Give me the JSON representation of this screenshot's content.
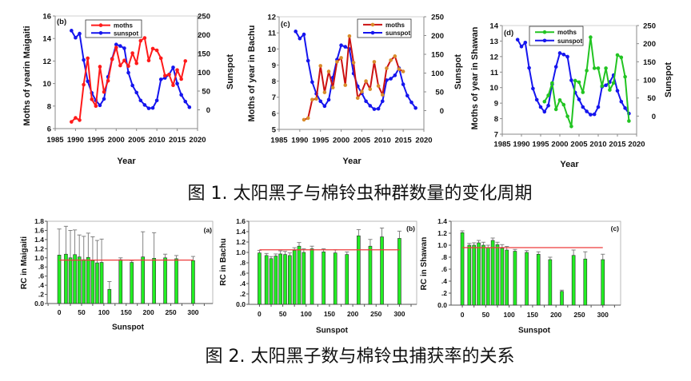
{
  "figure1": {
    "caption": "图 1. 太阳黑子与棉铃虫种群数量的变化周期"
  },
  "figure2": {
    "caption": "图 2. 太阳黑子数与棉铃虫捕获率的关系"
  },
  "chart_data": [
    {
      "id": "fig1-b-maigaiti",
      "type": "line",
      "panel_label": "(b)",
      "title": "",
      "xlabel": "Year",
      "ylabel": "Moths of yearin Maigaiti",
      "y2label": "Sunspot",
      "xlim": [
        1985,
        2020
      ],
      "ylim": [
        6,
        16
      ],
      "y2lim": [
        -50,
        250
      ],
      "grid": false,
      "xticks": [
        1985,
        1990,
        1995,
        2000,
        2005,
        2010,
        2015,
        2020
      ],
      "xtick_labels": [
        "1985",
        "1990",
        "1995",
        "2000",
        "2005",
        "2010",
        "2015",
        "2020"
      ],
      "yticks": [
        6,
        8,
        10,
        12,
        14,
        16
      ],
      "ytick_labels": [
        "6",
        "8",
        "10",
        "12",
        "14",
        "16"
      ],
      "y2ticks": [
        0,
        50,
        100,
        150,
        200,
        250
      ],
      "y2tick_labels": [
        "0",
        "50",
        "100",
        "150",
        "200",
        "250"
      ],
      "legend": {
        "position": "top-center"
      },
      "series": [
        {
          "name": "moths",
          "axis": "left",
          "line_color": "#ff1a1a",
          "marker_color": "#ff1a1a",
          "x": [
            1989,
            1990,
            1991,
            1992,
            1993,
            1994,
            1995,
            1996,
            1997,
            1998,
            1999,
            2000,
            2001,
            2002,
            2003,
            2004,
            2005,
            2006,
            2007,
            2008,
            2009,
            2010,
            2011,
            2012,
            2013,
            2014,
            2015,
            2016,
            2017
          ],
          "y": [
            6.6,
            6.95,
            6.75,
            9.9,
            12.25,
            8.6,
            8.0,
            11.5,
            9.25,
            10.25,
            12.15,
            13.2,
            11.6,
            12.05,
            11.55,
            12.7,
            11.8,
            13.8,
            14.05,
            12.05,
            13.1,
            12.95,
            12.25,
            10.7,
            10.8,
            9.85,
            11.2,
            10.4,
            12.0
          ]
        },
        {
          "name": "sunspot",
          "axis": "right",
          "line_color": "#1515ee",
          "marker_color": "#1515ee",
          "x": [
            1989,
            1990,
            1991,
            1992,
            1993,
            1994,
            1995,
            1996,
            1997,
            1998,
            1999,
            2000,
            2001,
            2002,
            2003,
            2004,
            2005,
            2006,
            2007,
            2008,
            2009,
            2010,
            2011,
            2012,
            2013,
            2014,
            2015,
            2016,
            2017,
            2018
          ],
          "y": [
            211,
            192,
            203,
            133,
            76,
            45,
            25,
            12,
            29,
            88,
            136,
            174,
            170,
            164,
            99,
            65,
            46,
            25,
            13,
            4,
            5,
            25,
            81,
            85,
            94,
            113,
            70,
            40,
            22,
            7
          ]
        }
      ]
    },
    {
      "id": "fig1-c-bachu",
      "type": "line",
      "panel_label": "(c)",
      "title": "",
      "xlabel": "Year",
      "ylabel": "Moths of year in Bachu",
      "y2label": "Sunspot",
      "xlim": [
        1985,
        2020
      ],
      "ylim": [
        5,
        12
      ],
      "y2lim": [
        -50,
        250
      ],
      "grid": false,
      "xticks": [
        1985,
        1990,
        1995,
        2000,
        2005,
        2010,
        2015,
        2020
      ],
      "xtick_labels": [
        "1985",
        "1990",
        "1995",
        "2000",
        "2005",
        "2010",
        "2015",
        "2020"
      ],
      "yticks": [
        5,
        6,
        7,
        8,
        9,
        10,
        11,
        12
      ],
      "ytick_labels": [
        "5",
        "6",
        "7",
        "8",
        "9",
        "10",
        "11",
        "12"
      ],
      "y2ticks": [
        0,
        50,
        100,
        150,
        200,
        250
      ],
      "y2tick_labels": [
        "0",
        "50",
        "100",
        "150",
        "200",
        "250"
      ],
      "legend": {
        "position": "top-right"
      },
      "series": [
        {
          "name": "moths",
          "axis": "left",
          "line_color": "#cc1111",
          "marker_color": "#d98c2b",
          "x": [
            1991,
            1992,
            1993,
            1994,
            1995,
            1996,
            1997,
            1998,
            1999,
            2000,
            2001,
            2002,
            2003,
            2004,
            2005,
            2006,
            2007,
            2008,
            2009,
            2010,
            2011,
            2012,
            2013,
            2014,
            2015
          ],
          "y": [
            5.6,
            5.7,
            6.85,
            6.9,
            8.95,
            7.3,
            8.6,
            7.6,
            9.2,
            9.45,
            7.75,
            10.8,
            9.15,
            6.95,
            7.35,
            8.0,
            7.5,
            9.2,
            7.7,
            7.15,
            8.8,
            9.3,
            9.55,
            8.75,
            8.6
          ]
        },
        {
          "name": "sunspot",
          "axis": "right",
          "line_color": "#1515ee",
          "marker_color": "#1515ee",
          "x": [
            1989,
            1990,
            1991,
            1992,
            1993,
            1994,
            1995,
            1996,
            1997,
            1998,
            1999,
            2000,
            2001,
            2002,
            2003,
            2004,
            2005,
            2006,
            2007,
            2008,
            2009,
            2010,
            2011,
            2012,
            2013,
            2014,
            2015,
            2016,
            2017,
            2018
          ],
          "y": [
            211,
            192,
            203,
            133,
            76,
            45,
            25,
            12,
            29,
            88,
            136,
            174,
            170,
            164,
            99,
            65,
            46,
            25,
            13,
            4,
            5,
            25,
            81,
            85,
            94,
            113,
            70,
            40,
            22,
            7
          ]
        }
      ]
    },
    {
      "id": "fig1-d-shawan",
      "type": "line",
      "panel_label": "(d)",
      "title": "",
      "xlabel": "Year",
      "ylabel": "Moths of year in Shawan",
      "y2label": "Sunspot",
      "xlim": [
        1985,
        2020
      ],
      "ylim": [
        7,
        14
      ],
      "y2lim": [
        -50,
        250
      ],
      "grid": false,
      "xticks": [
        1985,
        1990,
        1995,
        2000,
        2005,
        2010,
        2015,
        2020
      ],
      "xtick_labels": [
        "1985",
        "1990",
        "1995",
        "2000",
        "2005",
        "2010",
        "2015",
        "2020"
      ],
      "yticks": [
        7,
        8,
        9,
        10,
        11,
        12,
        13,
        14
      ],
      "ytick_labels": [
        "7",
        "8",
        "9",
        "10",
        "11",
        "12",
        "13",
        "14"
      ],
      "y2ticks": [
        0,
        50,
        100,
        150,
        200,
        250
      ],
      "y2tick_labels": [
        "0",
        "50",
        "100",
        "150",
        "200",
        "250"
      ],
      "legend": {
        "position": "top-left"
      },
      "series": [
        {
          "name": "moths",
          "axis": "left",
          "line_color": "#22c422",
          "marker_color": "#22c422",
          "x": [
            1996,
            1997,
            1998,
            1999,
            2000,
            2001,
            2002,
            2003,
            2004,
            2005,
            2006,
            2007,
            2008,
            2009,
            2010,
            2011,
            2012,
            2013,
            2014,
            2015,
            2016,
            2017,
            2018
          ],
          "y": [
            9.1,
            9.5,
            10.3,
            8.6,
            9.2,
            8.9,
            8.15,
            7.5,
            10.45,
            10.35,
            9.7,
            11.1,
            13.25,
            11.25,
            11.25,
            10.1,
            11.25,
            9.85,
            10.3,
            12.1,
            11.95,
            10.7,
            7.85
          ]
        },
        {
          "name": "sunspot",
          "axis": "right",
          "line_color": "#1515ee",
          "marker_color": "#1515ee",
          "x": [
            1989,
            1990,
            1991,
            1992,
            1993,
            1994,
            1995,
            1996,
            1997,
            1998,
            1999,
            2000,
            2001,
            2002,
            2003,
            2004,
            2005,
            2006,
            2007,
            2008,
            2009,
            2010,
            2011,
            2012,
            2013,
            2014,
            2015,
            2016,
            2017,
            2018
          ],
          "y": [
            211,
            192,
            203,
            133,
            76,
            45,
            25,
            12,
            29,
            88,
            136,
            174,
            170,
            164,
            99,
            65,
            46,
            25,
            13,
            4,
            5,
            25,
            81,
            85,
            94,
            113,
            70,
            40,
            22,
            7
          ]
        }
      ]
    },
    {
      "id": "fig2-a-maigaiti",
      "type": "bar",
      "panel_label": "(a)",
      "title": "",
      "xlabel": "Sunspot",
      "ylabel": "RC in Maigaiti",
      "xlim": [
        -27,
        344
      ],
      "ylim": [
        0,
        1.8
      ],
      "grid": false,
      "xticks": [
        0,
        50,
        100,
        150,
        200,
        250,
        300
      ],
      "xtick_labels": [
        "0",
        "50",
        "100",
        "150",
        "200",
        "250",
        "300"
      ],
      "minor_xtick_step": 25,
      "yticks": [
        0,
        0.2,
        0.4,
        0.6,
        0.8,
        1.0,
        1.2,
        1.4,
        1.6,
        1.8
      ],
      "ytick_labels": [
        "0.0",
        ".2",
        ".4",
        ".6",
        ".8",
        "1.0",
        "1.2",
        "1.4",
        "1.6",
        "1.8"
      ],
      "bar_color": "#22ee22",
      "categories": [
        0,
        15,
        25,
        35,
        45,
        55,
        65,
        75,
        85,
        95,
        112.5,
        137.5,
        162.5,
        187.5,
        212.5,
        237.5,
        262.5,
        300
      ],
      "values": [
        1.06,
        1.08,
        1.0,
        1.07,
        1.02,
        0.96,
        1.01,
        0.94,
        0.89,
        0.9,
        0.31,
        0.96,
        0.9,
        1.02,
        0.99,
        1.0,
        0.98,
        0.94
      ],
      "error_upper": [
        1.63,
        1.69,
        1.6,
        1.61,
        1.5,
        1.47,
        1.54,
        1.46,
        1.38,
        1.41,
        0.48,
        1.0,
        0.94,
        1.57,
        1.55,
        1.08,
        1.05,
        1.03
      ],
      "reference_line": {
        "y": 0.95,
        "x_range": [
          0,
          300
        ],
        "color": "#ee3b3b"
      }
    },
    {
      "id": "fig2-b-bachu",
      "type": "bar",
      "panel_label": "(b)",
      "title": "",
      "xlabel": "Sunspot",
      "ylabel": "RC in Bachu",
      "xlim": [
        -23,
        337
      ],
      "ylim": [
        0,
        1.6
      ],
      "grid": false,
      "xticks": [
        0,
        50,
        100,
        150,
        200,
        250,
        300
      ],
      "xtick_labels": [
        "0",
        "50",
        "100",
        "150",
        "200",
        "250",
        "300"
      ],
      "minor_xtick_step": 25,
      "yticks": [
        0,
        0.2,
        0.4,
        0.6,
        0.8,
        1.0,
        1.2,
        1.4,
        1.6
      ],
      "ytick_labels": [
        "0.0",
        ".2",
        ".4",
        ".6",
        ".8",
        "1.0",
        "1.2",
        "1.4",
        "1.6"
      ],
      "bar_color": "#22ee22",
      "categories": [
        0,
        15,
        25,
        35,
        45,
        55,
        65,
        75,
        85,
        95,
        112.5,
        137.5,
        162.5,
        187.5,
        212.5,
        237.5,
        262.5,
        300
      ],
      "values": [
        0.99,
        0.94,
        0.88,
        0.93,
        0.97,
        0.96,
        0.94,
        1.04,
        1.12,
        1.0,
        1.07,
        1.01,
        0.99,
        0.96,
        1.32,
        1.12,
        1.3,
        1.27
      ],
      "error_upper": [
        1.04,
        0.98,
        0.92,
        0.97,
        1.03,
        1.02,
        0.99,
        1.09,
        1.19,
        1.07,
        1.12,
        1.07,
        1.05,
        1.01,
        1.44,
        1.25,
        1.47,
        1.41
      ],
      "reference_line": {
        "y": 1.05,
        "x_range": [
          0,
          300
        ],
        "color": "#ee3b3b"
      }
    },
    {
      "id": "fig2-c-shawan",
      "type": "bar",
      "panel_label": "(c)",
      "title": "",
      "xlabel": "Sunspot",
      "ylabel": "RC in Shawan",
      "xlim": [
        -24,
        338
      ],
      "ylim": [
        0,
        1.4
      ],
      "grid": false,
      "xticks": [
        0,
        50,
        100,
        150,
        200,
        250,
        300
      ],
      "xtick_labels": [
        "0",
        "50",
        "100",
        "150",
        "200",
        "250",
        "300"
      ],
      "minor_xtick_step": 25,
      "yticks": [
        0,
        0.2,
        0.4,
        0.6,
        0.8,
        1.0,
        1.2,
        1.4
      ],
      "ytick_labels": [
        "0.0",
        ".2",
        ".4",
        ".6",
        ".8",
        "1.0",
        "1.2",
        "1.4"
      ],
      "bar_color": "#22ee22",
      "categories": [
        0,
        15,
        25,
        35,
        45,
        55,
        65,
        75,
        85,
        95,
        112.5,
        137.5,
        162.5,
        187.5,
        212.5,
        237.5,
        262.5,
        300
      ],
      "values": [
        1.21,
        1.0,
        1.0,
        1.04,
        1.0,
        0.96,
        1.08,
        1.01,
        0.95,
        0.92,
        0.9,
        0.88,
        0.85,
        0.76,
        0.23,
        0.83,
        0.77,
        0.76
      ],
      "error_upper": [
        1.24,
        1.03,
        1.04,
        1.08,
        1.05,
        1.0,
        1.12,
        1.05,
        1.01,
        0.98,
        0.93,
        0.91,
        0.89,
        0.8,
        0.25,
        0.92,
        0.89,
        0.85
      ],
      "reference_line": {
        "y": 0.96,
        "x_range": [
          0,
          300
        ],
        "color": "#ee3b3b"
      }
    }
  ]
}
